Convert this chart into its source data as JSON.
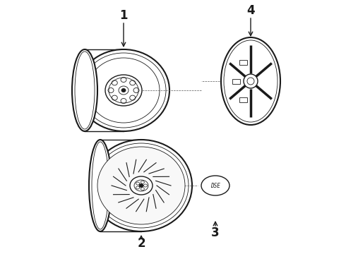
{
  "bg_color": "#ffffff",
  "lc": "#1a1a1a",
  "figsize": [
    4.9,
    3.6
  ],
  "dpi": 100,
  "xlim": [
    0,
    490
  ],
  "ylim": [
    0,
    360
  ]
}
